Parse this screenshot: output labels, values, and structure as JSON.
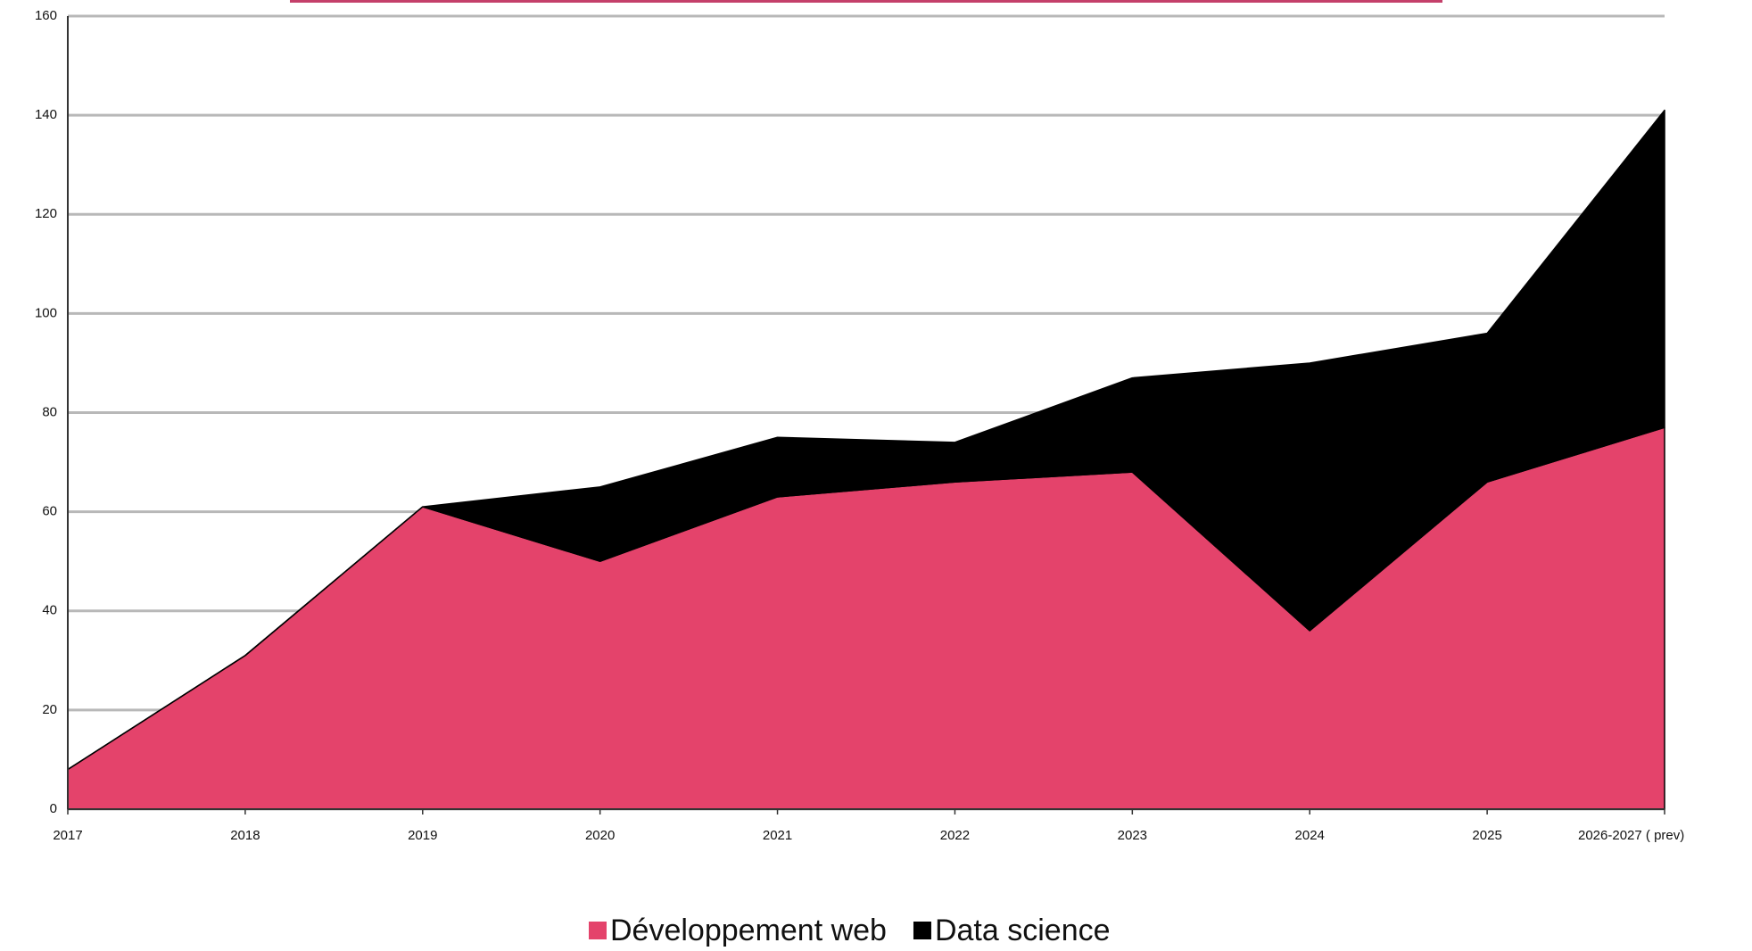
{
  "chart_data": {
    "type": "stacked-area",
    "categories": [
      "2017",
      "2018",
      "2019",
      "2020",
      "2021",
      "2022",
      "2023",
      "2024",
      "2025",
      "2026-2027 ( prev)"
    ],
    "series": [
      {
        "name": "Développement web",
        "color": "#e4436b",
        "values": [
          8,
          31,
          61,
          50,
          63,
          66,
          68,
          36,
          66,
          77
        ]
      },
      {
        "name": "Data science",
        "color": "#000000",
        "values": [
          0,
          0,
          0,
          15,
          12,
          8,
          19,
          54,
          30,
          64
        ]
      }
    ],
    "ylim": [
      0,
      160
    ],
    "yticks": [
      0,
      20,
      40,
      60,
      80,
      100,
      120,
      140,
      160
    ],
    "grid": true
  }
}
